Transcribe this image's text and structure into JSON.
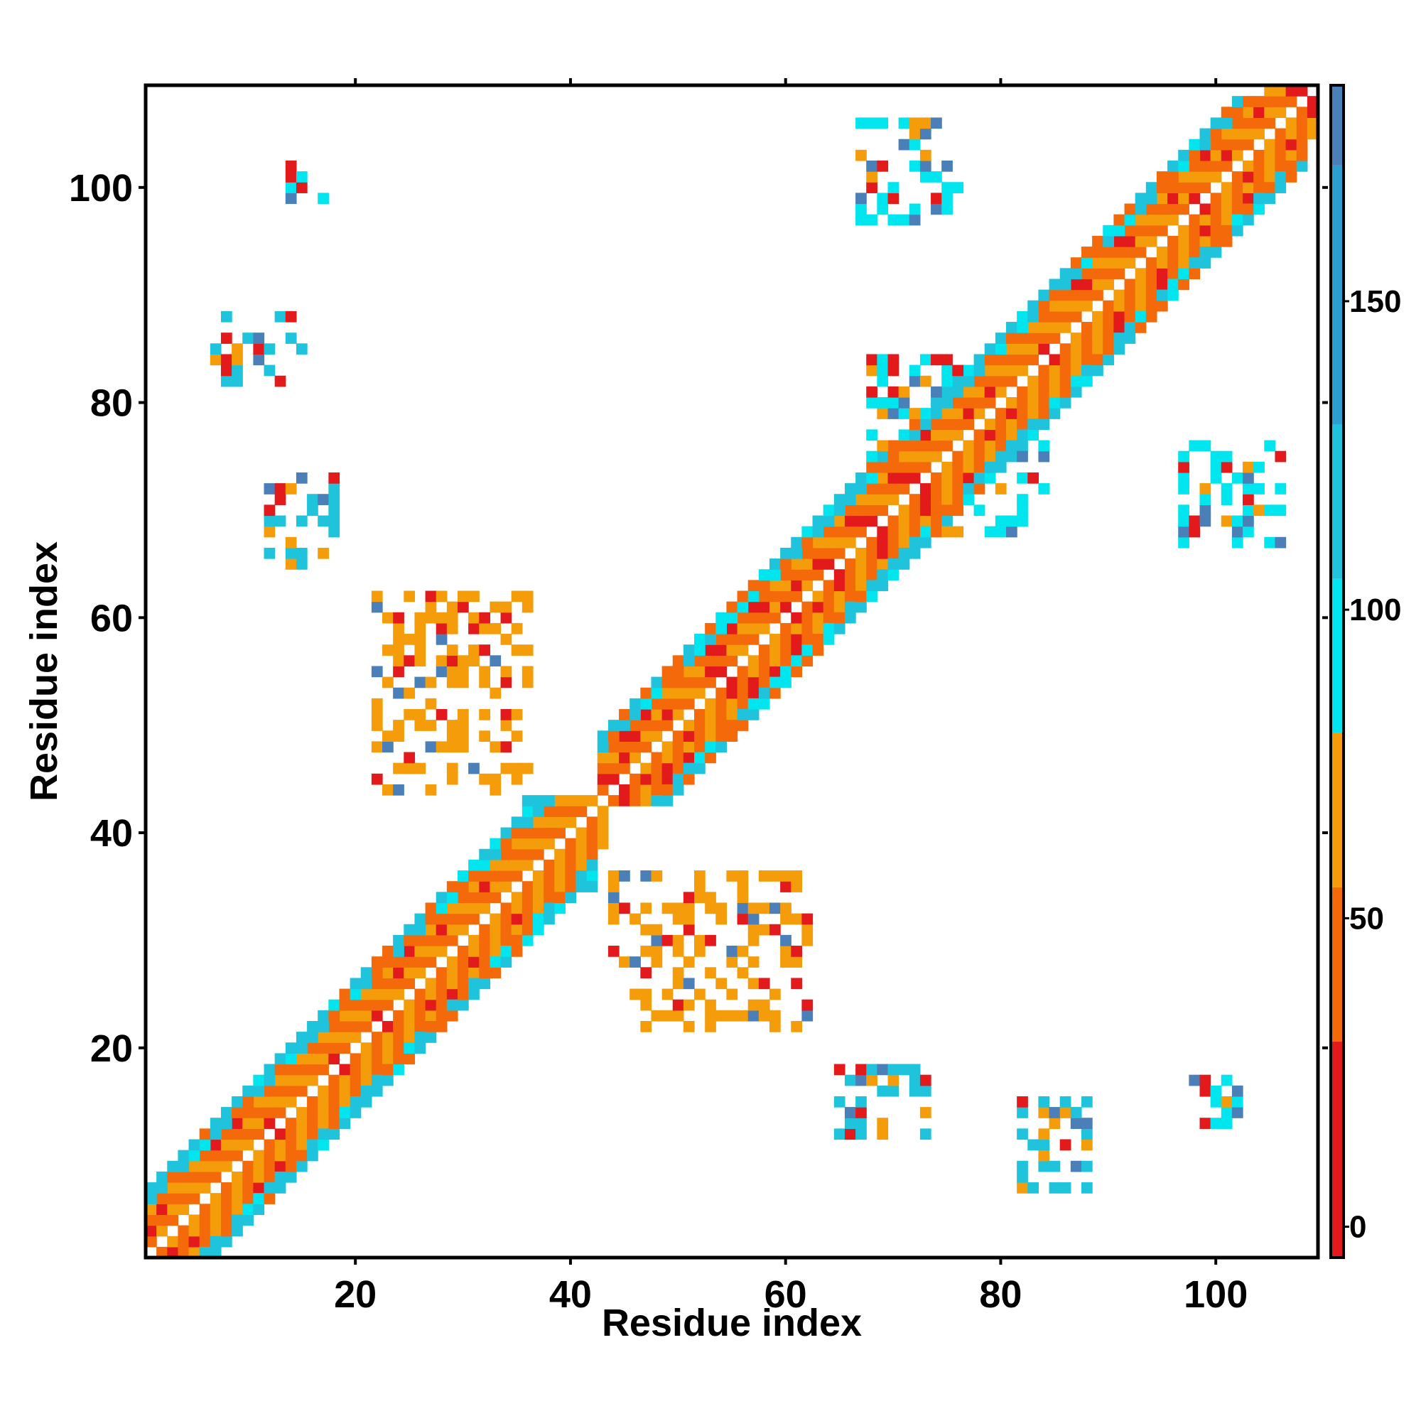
{
  "chart_data": {
    "type": "heatmap",
    "xlabel": "Residue index",
    "ylabel": "Residue index",
    "xlim": [
      1,
      109
    ],
    "ylim": [
      1,
      109
    ],
    "x_ticks": [
      20,
      40,
      60,
      80,
      100
    ],
    "y_ticks": [
      20,
      40,
      60,
      80,
      100
    ],
    "colorbar": {
      "range": [
        -5,
        185
      ],
      "ticks": [
        0,
        50,
        100,
        150
      ],
      "bins": [
        {
          "from": -5,
          "to": 30,
          "color": "#e31a1c"
        },
        {
          "from": 30,
          "to": 55,
          "color": "#f46a0a"
        },
        {
          "from": 55,
          "to": 80,
          "color": "#f59c0b"
        },
        {
          "from": 80,
          "to": 105,
          "color": "#00e5ee"
        },
        {
          "from": 105,
          "to": 130,
          "color": "#1fc4dc"
        },
        {
          "from": 130,
          "to": 172,
          "color": "#2a9fd0"
        },
        {
          "from": 172,
          "to": 185,
          "color": "#4a7fb8"
        }
      ]
    },
    "diagonal": {
      "bands": [
        {
          "offset_range": [
            1,
            4
          ],
          "start": 1,
          "end": 43
        },
        {
          "offset_range": [
            1,
            4
          ],
          "start": 43,
          "end": 109
        }
      ],
      "sheet_contacts": [
        {
          "i_range": [
            1,
            42
          ],
          "j_range": [
            1,
            42
          ],
          "max_offset": 6,
          "value": 110
        },
        {
          "i_range": [
            43,
            108
          ],
          "j_range": [
            43,
            108
          ],
          "max_offset": 6,
          "value": 110
        }
      ]
    },
    "clusters": [
      {
        "x_range": [
          7,
          15
        ],
        "y_range": [
          82,
          88
        ],
        "value": 120
      },
      {
        "x_range": [
          82,
          88
        ],
        "y_range": [
          7,
          15
        ],
        "value": 120
      },
      {
        "x_range": [
          12,
          18
        ],
        "y_range": [
          65,
          73
        ],
        "value": 110
      },
      {
        "x_range": [
          65,
          73
        ],
        "y_range": [
          12,
          18
        ],
        "value": 110
      },
      {
        "x_range": [
          13,
          17
        ],
        "y_range": [
          98,
          102
        ],
        "value": 100
      },
      {
        "x_range": [
          98,
          102
        ],
        "y_range": [
          13,
          17
        ],
        "value": 100
      },
      {
        "x_range": [
          67,
          76
        ],
        "y_range": [
          97,
          106
        ],
        "value": 100
      },
      {
        "x_range": [
          97,
          106
        ],
        "y_range": [
          67,
          76
        ],
        "value": 100
      },
      {
        "x_range": [
          22,
          36
        ],
        "y_range": [
          44,
          62
        ],
        "value": 60
      },
      {
        "x_range": [
          44,
          62
        ],
        "y_range": [
          22,
          36
        ],
        "value": 60
      },
      {
        "x_range": [
          36,
          42
        ],
        "y_range": [
          35,
          43
        ],
        "value": 120
      },
      {
        "x_range": [
          68,
          76
        ],
        "y_range": [
          74,
          84
        ],
        "value": 100
      },
      {
        "x_range": [
          74,
          84
        ],
        "y_range": [
          68,
          76
        ],
        "value": 100
      }
    ]
  }
}
